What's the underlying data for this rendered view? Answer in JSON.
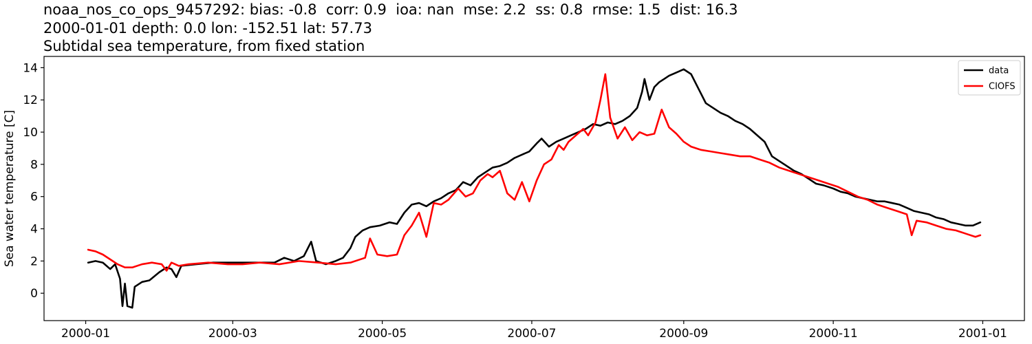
{
  "titles": {
    "line1": "noaa_nos_co_ops_9457292: bias: -0.8  corr: 0.9  ioa: nan  mse: 2.2  ss: 0.8  rmse: 1.5  dist: 16.3",
    "line2": "2000-01-01 depth: 0.0 lon: -152.51 lat: 57.73",
    "line3": "Subtidal sea temperature, from fixed station"
  },
  "chart_data": {
    "type": "line",
    "title": "noaa_nos_co_ops_9457292: bias: -0.8  corr: 0.9  ioa: nan  mse: 2.2  ss: 0.8  rmse: 1.5  dist: 16.3\n2000-01-01 depth: 0.0 lon: -152.51 lat: 57.73\nSubtidal sea temperature, from fixed station",
    "xlabel": "",
    "ylabel": "Sea water temperature [C]",
    "xlim": [
      "1999-12-15",
      "2001-01-18"
    ],
    "ylim": [
      -1.7,
      14.7
    ],
    "xticks": [
      "2000-01",
      "2000-03",
      "2000-05",
      "2000-07",
      "2000-09",
      "2000-11",
      "2001-01"
    ],
    "yticks": [
      0,
      2,
      4,
      6,
      8,
      10,
      12,
      14
    ],
    "grid": false,
    "legend": "top-right",
    "series": [
      {
        "name": "data",
        "color": "#000000",
        "points": [
          [
            "2000-01-02",
            1.9
          ],
          [
            "2000-01-05",
            2.0
          ],
          [
            "2000-01-08",
            1.9
          ],
          [
            "2000-01-11",
            1.5
          ],
          [
            "2000-01-13",
            1.8
          ],
          [
            "2000-01-15",
            0.9
          ],
          [
            "2000-01-16",
            -0.8
          ],
          [
            "2000-01-17",
            0.6
          ],
          [
            "2000-01-18",
            -0.8
          ],
          [
            "2000-01-20",
            -0.9
          ],
          [
            "2000-01-21",
            0.4
          ],
          [
            "2000-01-24",
            0.7
          ],
          [
            "2000-01-27",
            0.8
          ],
          [
            "2000-01-31",
            1.3
          ],
          [
            "2000-02-03",
            1.6
          ],
          [
            "2000-02-05",
            1.5
          ],
          [
            "2000-02-07",
            1.0
          ],
          [
            "2000-02-09",
            1.7
          ],
          [
            "2000-02-15",
            1.8
          ],
          [
            "2000-02-22",
            1.9
          ],
          [
            "2000-03-01",
            1.9
          ],
          [
            "2000-03-10",
            1.9
          ],
          [
            "2000-03-18",
            1.9
          ],
          [
            "2000-03-22",
            2.2
          ],
          [
            "2000-03-26",
            2.0
          ],
          [
            "2000-03-30",
            2.3
          ],
          [
            "2000-04-02",
            3.2
          ],
          [
            "2000-04-04",
            2.0
          ],
          [
            "2000-04-08",
            1.8
          ],
          [
            "2000-04-12",
            2.0
          ],
          [
            "2000-04-15",
            2.2
          ],
          [
            "2000-04-18",
            2.8
          ],
          [
            "2000-04-20",
            3.5
          ],
          [
            "2000-04-23",
            3.9
          ],
          [
            "2000-04-26",
            4.1
          ],
          [
            "2000-04-30",
            4.2
          ],
          [
            "2000-05-04",
            4.4
          ],
          [
            "2000-05-07",
            4.3
          ],
          [
            "2000-05-10",
            5.0
          ],
          [
            "2000-05-13",
            5.5
          ],
          [
            "2000-05-16",
            5.6
          ],
          [
            "2000-05-19",
            5.4
          ],
          [
            "2000-05-22",
            5.7
          ],
          [
            "2000-05-25",
            5.9
          ],
          [
            "2000-05-28",
            6.2
          ],
          [
            "2000-05-31",
            6.4
          ],
          [
            "2000-06-03",
            6.9
          ],
          [
            "2000-06-06",
            6.7
          ],
          [
            "2000-06-09",
            7.2
          ],
          [
            "2000-06-12",
            7.5
          ],
          [
            "2000-06-15",
            7.8
          ],
          [
            "2000-06-18",
            7.9
          ],
          [
            "2000-06-21",
            8.1
          ],
          [
            "2000-06-24",
            8.4
          ],
          [
            "2000-06-27",
            8.6
          ],
          [
            "2000-06-30",
            8.8
          ],
          [
            "2000-07-03",
            9.3
          ],
          [
            "2000-07-05",
            9.6
          ],
          [
            "2000-07-08",
            9.1
          ],
          [
            "2000-07-11",
            9.4
          ],
          [
            "2000-07-14",
            9.6
          ],
          [
            "2000-07-17",
            9.8
          ],
          [
            "2000-07-20",
            10.0
          ],
          [
            "2000-07-23",
            10.2
          ],
          [
            "2000-07-26",
            10.5
          ],
          [
            "2000-07-29",
            10.4
          ],
          [
            "2000-08-01",
            10.6
          ],
          [
            "2000-08-04",
            10.5
          ],
          [
            "2000-08-07",
            10.7
          ],
          [
            "2000-08-10",
            11.0
          ],
          [
            "2000-08-13",
            11.5
          ],
          [
            "2000-08-15",
            12.5
          ],
          [
            "2000-08-16",
            13.3
          ],
          [
            "2000-08-18",
            12.0
          ],
          [
            "2000-08-20",
            12.8
          ],
          [
            "2000-08-22",
            13.1
          ],
          [
            "2000-08-24",
            13.3
          ],
          [
            "2000-08-26",
            13.5
          ],
          [
            "2000-08-29",
            13.7
          ],
          [
            "2000-09-01",
            13.9
          ],
          [
            "2000-09-04",
            13.6
          ],
          [
            "2000-09-07",
            12.7
          ],
          [
            "2000-09-10",
            11.8
          ],
          [
            "2000-09-13",
            11.5
          ],
          [
            "2000-09-16",
            11.2
          ],
          [
            "2000-09-19",
            11.0
          ],
          [
            "2000-09-22",
            10.7
          ],
          [
            "2000-09-25",
            10.5
          ],
          [
            "2000-09-28",
            10.2
          ],
          [
            "2000-10-01",
            9.8
          ],
          [
            "2000-10-04",
            9.4
          ],
          [
            "2000-10-07",
            8.5
          ],
          [
            "2000-10-10",
            8.2
          ],
          [
            "2000-10-13",
            7.9
          ],
          [
            "2000-10-16",
            7.6
          ],
          [
            "2000-10-19",
            7.4
          ],
          [
            "2000-10-22",
            7.1
          ],
          [
            "2000-10-25",
            6.8
          ],
          [
            "2000-10-28",
            6.7
          ],
          [
            "2000-11-01",
            6.5
          ],
          [
            "2000-11-04",
            6.3
          ],
          [
            "2000-11-07",
            6.2
          ],
          [
            "2000-11-10",
            6.0
          ],
          [
            "2000-11-13",
            5.9
          ],
          [
            "2000-11-16",
            5.8
          ],
          [
            "2000-11-19",
            5.7
          ],
          [
            "2000-11-22",
            5.7
          ],
          [
            "2000-11-25",
            5.6
          ],
          [
            "2000-11-28",
            5.5
          ],
          [
            "2000-12-01",
            5.3
          ],
          [
            "2000-12-04",
            5.1
          ],
          [
            "2000-12-07",
            5.0
          ],
          [
            "2000-12-10",
            4.9
          ],
          [
            "2000-12-13",
            4.7
          ],
          [
            "2000-12-16",
            4.6
          ],
          [
            "2000-12-19",
            4.4
          ],
          [
            "2000-12-22",
            4.3
          ],
          [
            "2000-12-25",
            4.2
          ],
          [
            "2000-12-28",
            4.2
          ],
          [
            "2000-12-31",
            4.4
          ]
        ]
      },
      {
        "name": "CIOFS",
        "color": "#ff0000",
        "points": [
          [
            "2000-01-02",
            2.7
          ],
          [
            "2000-01-05",
            2.6
          ],
          [
            "2000-01-08",
            2.4
          ],
          [
            "2000-01-11",
            2.1
          ],
          [
            "2000-01-14",
            1.8
          ],
          [
            "2000-01-17",
            1.6
          ],
          [
            "2000-01-20",
            1.6
          ],
          [
            "2000-01-24",
            1.8
          ],
          [
            "2000-01-28",
            1.9
          ],
          [
            "2000-02-01",
            1.8
          ],
          [
            "2000-02-03",
            1.4
          ],
          [
            "2000-02-05",
            1.9
          ],
          [
            "2000-02-08",
            1.7
          ],
          [
            "2000-02-12",
            1.8
          ],
          [
            "2000-02-20",
            1.9
          ],
          [
            "2000-02-28",
            1.8
          ],
          [
            "2000-03-05",
            1.8
          ],
          [
            "2000-03-12",
            1.9
          ],
          [
            "2000-03-20",
            1.8
          ],
          [
            "2000-03-28",
            2.0
          ],
          [
            "2000-04-05",
            1.9
          ],
          [
            "2000-04-12",
            1.8
          ],
          [
            "2000-04-18",
            1.9
          ],
          [
            "2000-04-24",
            2.2
          ],
          [
            "2000-04-26",
            3.4
          ],
          [
            "2000-04-29",
            2.4
          ],
          [
            "2000-05-03",
            2.3
          ],
          [
            "2000-05-07",
            2.4
          ],
          [
            "2000-05-10",
            3.6
          ],
          [
            "2000-05-13",
            4.2
          ],
          [
            "2000-05-16",
            5.0
          ],
          [
            "2000-05-19",
            3.5
          ],
          [
            "2000-05-22",
            5.6
          ],
          [
            "2000-05-25",
            5.5
          ],
          [
            "2000-05-28",
            5.8
          ],
          [
            "2000-06-01",
            6.5
          ],
          [
            "2000-06-04",
            6.0
          ],
          [
            "2000-06-07",
            6.2
          ],
          [
            "2000-06-10",
            7.0
          ],
          [
            "2000-06-13",
            7.4
          ],
          [
            "2000-06-15",
            7.2
          ],
          [
            "2000-06-18",
            7.6
          ],
          [
            "2000-06-21",
            6.2
          ],
          [
            "2000-06-24",
            5.8
          ],
          [
            "2000-06-27",
            6.9
          ],
          [
            "2000-06-30",
            5.7
          ],
          [
            "2000-07-03",
            7.0
          ],
          [
            "2000-07-06",
            8.0
          ],
          [
            "2000-07-09",
            8.3
          ],
          [
            "2000-07-12",
            9.2
          ],
          [
            "2000-07-14",
            8.9
          ],
          [
            "2000-07-16",
            9.4
          ],
          [
            "2000-07-19",
            9.8
          ],
          [
            "2000-07-22",
            10.2
          ],
          [
            "2000-07-24",
            9.8
          ],
          [
            "2000-07-27",
            10.6
          ],
          [
            "2000-07-29",
            12.0
          ],
          [
            "2000-07-31",
            13.6
          ],
          [
            "2000-08-02",
            10.9
          ],
          [
            "2000-08-05",
            9.6
          ],
          [
            "2000-08-08",
            10.3
          ],
          [
            "2000-08-11",
            9.5
          ],
          [
            "2000-08-14",
            10.0
          ],
          [
            "2000-08-17",
            9.8
          ],
          [
            "2000-08-20",
            9.9
          ],
          [
            "2000-08-23",
            11.4
          ],
          [
            "2000-08-26",
            10.3
          ],
          [
            "2000-08-29",
            9.9
          ],
          [
            "2000-09-01",
            9.4
          ],
          [
            "2000-09-04",
            9.1
          ],
          [
            "2000-09-08",
            8.9
          ],
          [
            "2000-09-12",
            8.8
          ],
          [
            "2000-09-16",
            8.7
          ],
          [
            "2000-09-20",
            8.6
          ],
          [
            "2000-09-24",
            8.5
          ],
          [
            "2000-09-28",
            8.5
          ],
          [
            "2000-10-02",
            8.3
          ],
          [
            "2000-10-06",
            8.1
          ],
          [
            "2000-10-10",
            7.8
          ],
          [
            "2000-10-14",
            7.6
          ],
          [
            "2000-10-18",
            7.4
          ],
          [
            "2000-10-22",
            7.2
          ],
          [
            "2000-10-26",
            7.0
          ],
          [
            "2000-10-30",
            6.8
          ],
          [
            "2000-11-03",
            6.6
          ],
          [
            "2000-11-07",
            6.3
          ],
          [
            "2000-11-11",
            6.0
          ],
          [
            "2000-11-15",
            5.8
          ],
          [
            "2000-11-19",
            5.5
          ],
          [
            "2000-11-23",
            5.3
          ],
          [
            "2000-11-27",
            5.1
          ],
          [
            "2000-12-01",
            4.9
          ],
          [
            "2000-12-03",
            3.6
          ],
          [
            "2000-12-05",
            4.5
          ],
          [
            "2000-12-09",
            4.4
          ],
          [
            "2000-12-13",
            4.2
          ],
          [
            "2000-12-17",
            4.0
          ],
          [
            "2000-12-21",
            3.9
          ],
          [
            "2000-12-25",
            3.7
          ],
          [
            "2000-12-29",
            3.5
          ],
          [
            "2000-12-31",
            3.6
          ]
        ]
      }
    ]
  }
}
